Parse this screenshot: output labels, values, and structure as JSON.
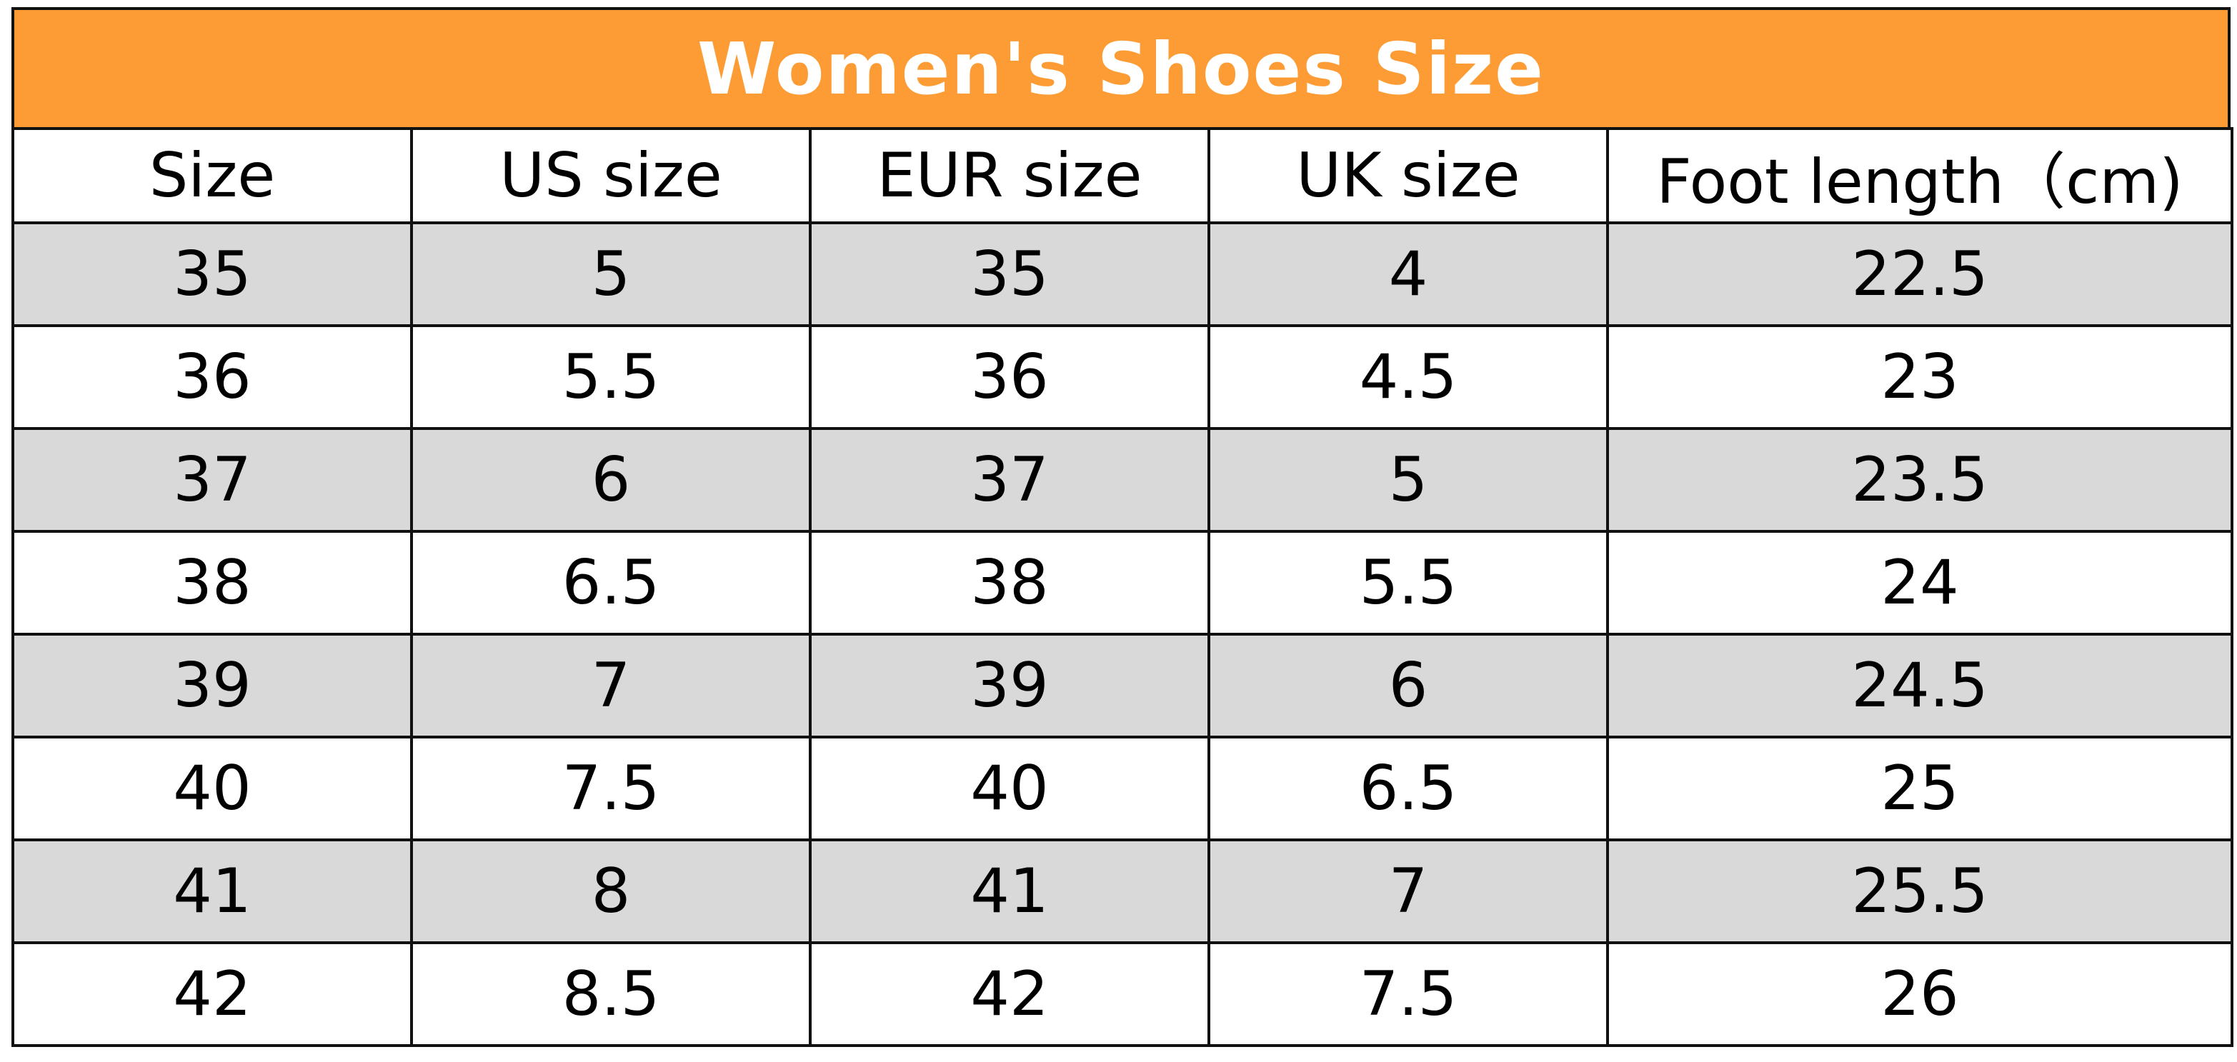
{
  "title": "Women's Shoes Size",
  "colors": {
    "header_bg": "#fd9b35",
    "shaded_row": "#d9d9d9"
  },
  "columns": [
    "Size",
    "US size",
    "EUR size",
    "UK size",
    "Foot length（cm)"
  ],
  "rows": [
    [
      "35",
      "5",
      "35",
      "4",
      "22.5"
    ],
    [
      "36",
      "5.5",
      "36",
      "4.5",
      "23"
    ],
    [
      "37",
      "6",
      "37",
      "5",
      "23.5"
    ],
    [
      "38",
      "6.5",
      "38",
      "5.5",
      "24"
    ],
    [
      "39",
      "7",
      "39",
      "6",
      "24.5"
    ],
    [
      "40",
      "7.5",
      "40",
      "6.5",
      "25"
    ],
    [
      "41",
      "8",
      "41",
      "7",
      "25.5"
    ],
    [
      "42",
      "8.5",
      "42",
      "7.5",
      "26"
    ]
  ]
}
